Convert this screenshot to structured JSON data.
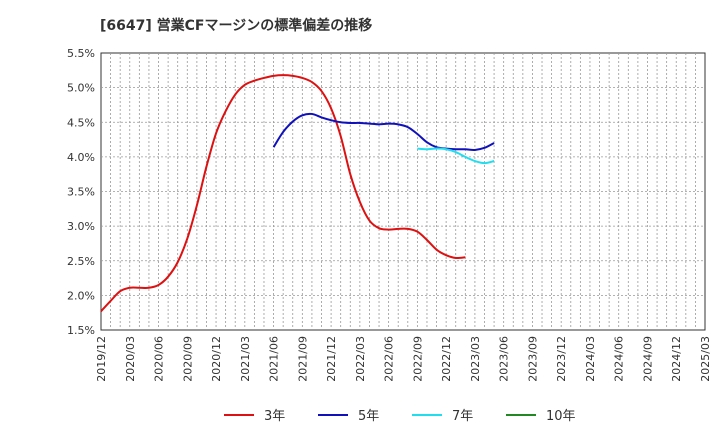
{
  "chart_data": {
    "type": "line",
    "title": "[6647]  営業CFマージンの標準偏差の推移",
    "xlabel": "",
    "ylabel": "",
    "ylim": [
      1.5,
      5.5
    ],
    "y_ticks": [
      "1.5%",
      "2.0%",
      "2.5%",
      "3.0%",
      "3.5%",
      "4.0%",
      "4.5%",
      "5.0%",
      "5.5%"
    ],
    "y_tick_values": [
      1.5,
      2.0,
      2.5,
      3.0,
      3.5,
      4.0,
      4.5,
      5.0,
      5.5
    ],
    "x_ticks": [
      "2019/12",
      "2020/03",
      "2020/06",
      "2020/09",
      "2020/12",
      "2021/03",
      "2021/06",
      "2021/09",
      "2021/12",
      "2022/03",
      "2022/06",
      "2022/09",
      "2022/12",
      "2023/03",
      "2023/06",
      "2023/09",
      "2023/12",
      "2024/03",
      "2024/06",
      "2024/09",
      "2024/12",
      "2025/03"
    ],
    "grid": true,
    "legend_position": "bottom",
    "series": [
      {
        "name": "3年",
        "color": "#dd1111",
        "values": [
          [
            0,
            1.77
          ],
          [
            1,
            1.92
          ],
          [
            2,
            2.06
          ],
          [
            3,
            2.11
          ],
          [
            4,
            2.11
          ],
          [
            5,
            2.11
          ],
          [
            6,
            2.15
          ],
          [
            7,
            2.27
          ],
          [
            8,
            2.48
          ],
          [
            9,
            2.82
          ],
          [
            10,
            3.3
          ],
          [
            11,
            3.86
          ],
          [
            12,
            4.34
          ],
          [
            13,
            4.66
          ],
          [
            14,
            4.9
          ],
          [
            15,
            5.04
          ],
          [
            16,
            5.1
          ],
          [
            17,
            5.14
          ],
          [
            18,
            5.17
          ],
          [
            19,
            5.18
          ],
          [
            20,
            5.17
          ],
          [
            21,
            5.14
          ],
          [
            22,
            5.08
          ],
          [
            23,
            4.95
          ],
          [
            24,
            4.7
          ],
          [
            25,
            4.3
          ],
          [
            26,
            3.75
          ],
          [
            27,
            3.35
          ],
          [
            28,
            3.08
          ],
          [
            29,
            2.97
          ],
          [
            30,
            2.95
          ],
          [
            31,
            2.96
          ],
          [
            32,
            2.96
          ],
          [
            33,
            2.92
          ],
          [
            34,
            2.8
          ],
          [
            35,
            2.66
          ],
          [
            36,
            2.58
          ],
          [
            37,
            2.54
          ],
          [
            38,
            2.55
          ]
        ]
      },
      {
        "name": "5年",
        "color": "#1111bb",
        "values": [
          [
            18,
            4.14
          ],
          [
            19,
            4.36
          ],
          [
            20,
            4.51
          ],
          [
            21,
            4.6
          ],
          [
            22,
            4.62
          ],
          [
            23,
            4.57
          ],
          [
            24,
            4.53
          ],
          [
            25,
            4.5
          ],
          [
            26,
            4.49
          ],
          [
            27,
            4.49
          ],
          [
            28,
            4.48
          ],
          [
            29,
            4.47
          ],
          [
            30,
            4.48
          ],
          [
            31,
            4.47
          ],
          [
            32,
            4.43
          ],
          [
            33,
            4.33
          ],
          [
            34,
            4.21
          ],
          [
            35,
            4.14
          ],
          [
            36,
            4.12
          ],
          [
            37,
            4.11
          ],
          [
            38,
            4.11
          ],
          [
            39,
            4.1
          ],
          [
            40,
            4.13
          ],
          [
            41,
            4.2
          ]
        ]
      },
      {
        "name": "7年",
        "color": "#22ddee",
        "values": [
          [
            33,
            4.12
          ],
          [
            34,
            4.11
          ],
          [
            35,
            4.12
          ],
          [
            36,
            4.11
          ],
          [
            37,
            4.07
          ],
          [
            38,
            4.0
          ],
          [
            39,
            3.94
          ],
          [
            40,
            3.91
          ],
          [
            41,
            3.94
          ]
        ]
      },
      {
        "name": "10年",
        "color": "#228822",
        "values": []
      }
    ]
  }
}
